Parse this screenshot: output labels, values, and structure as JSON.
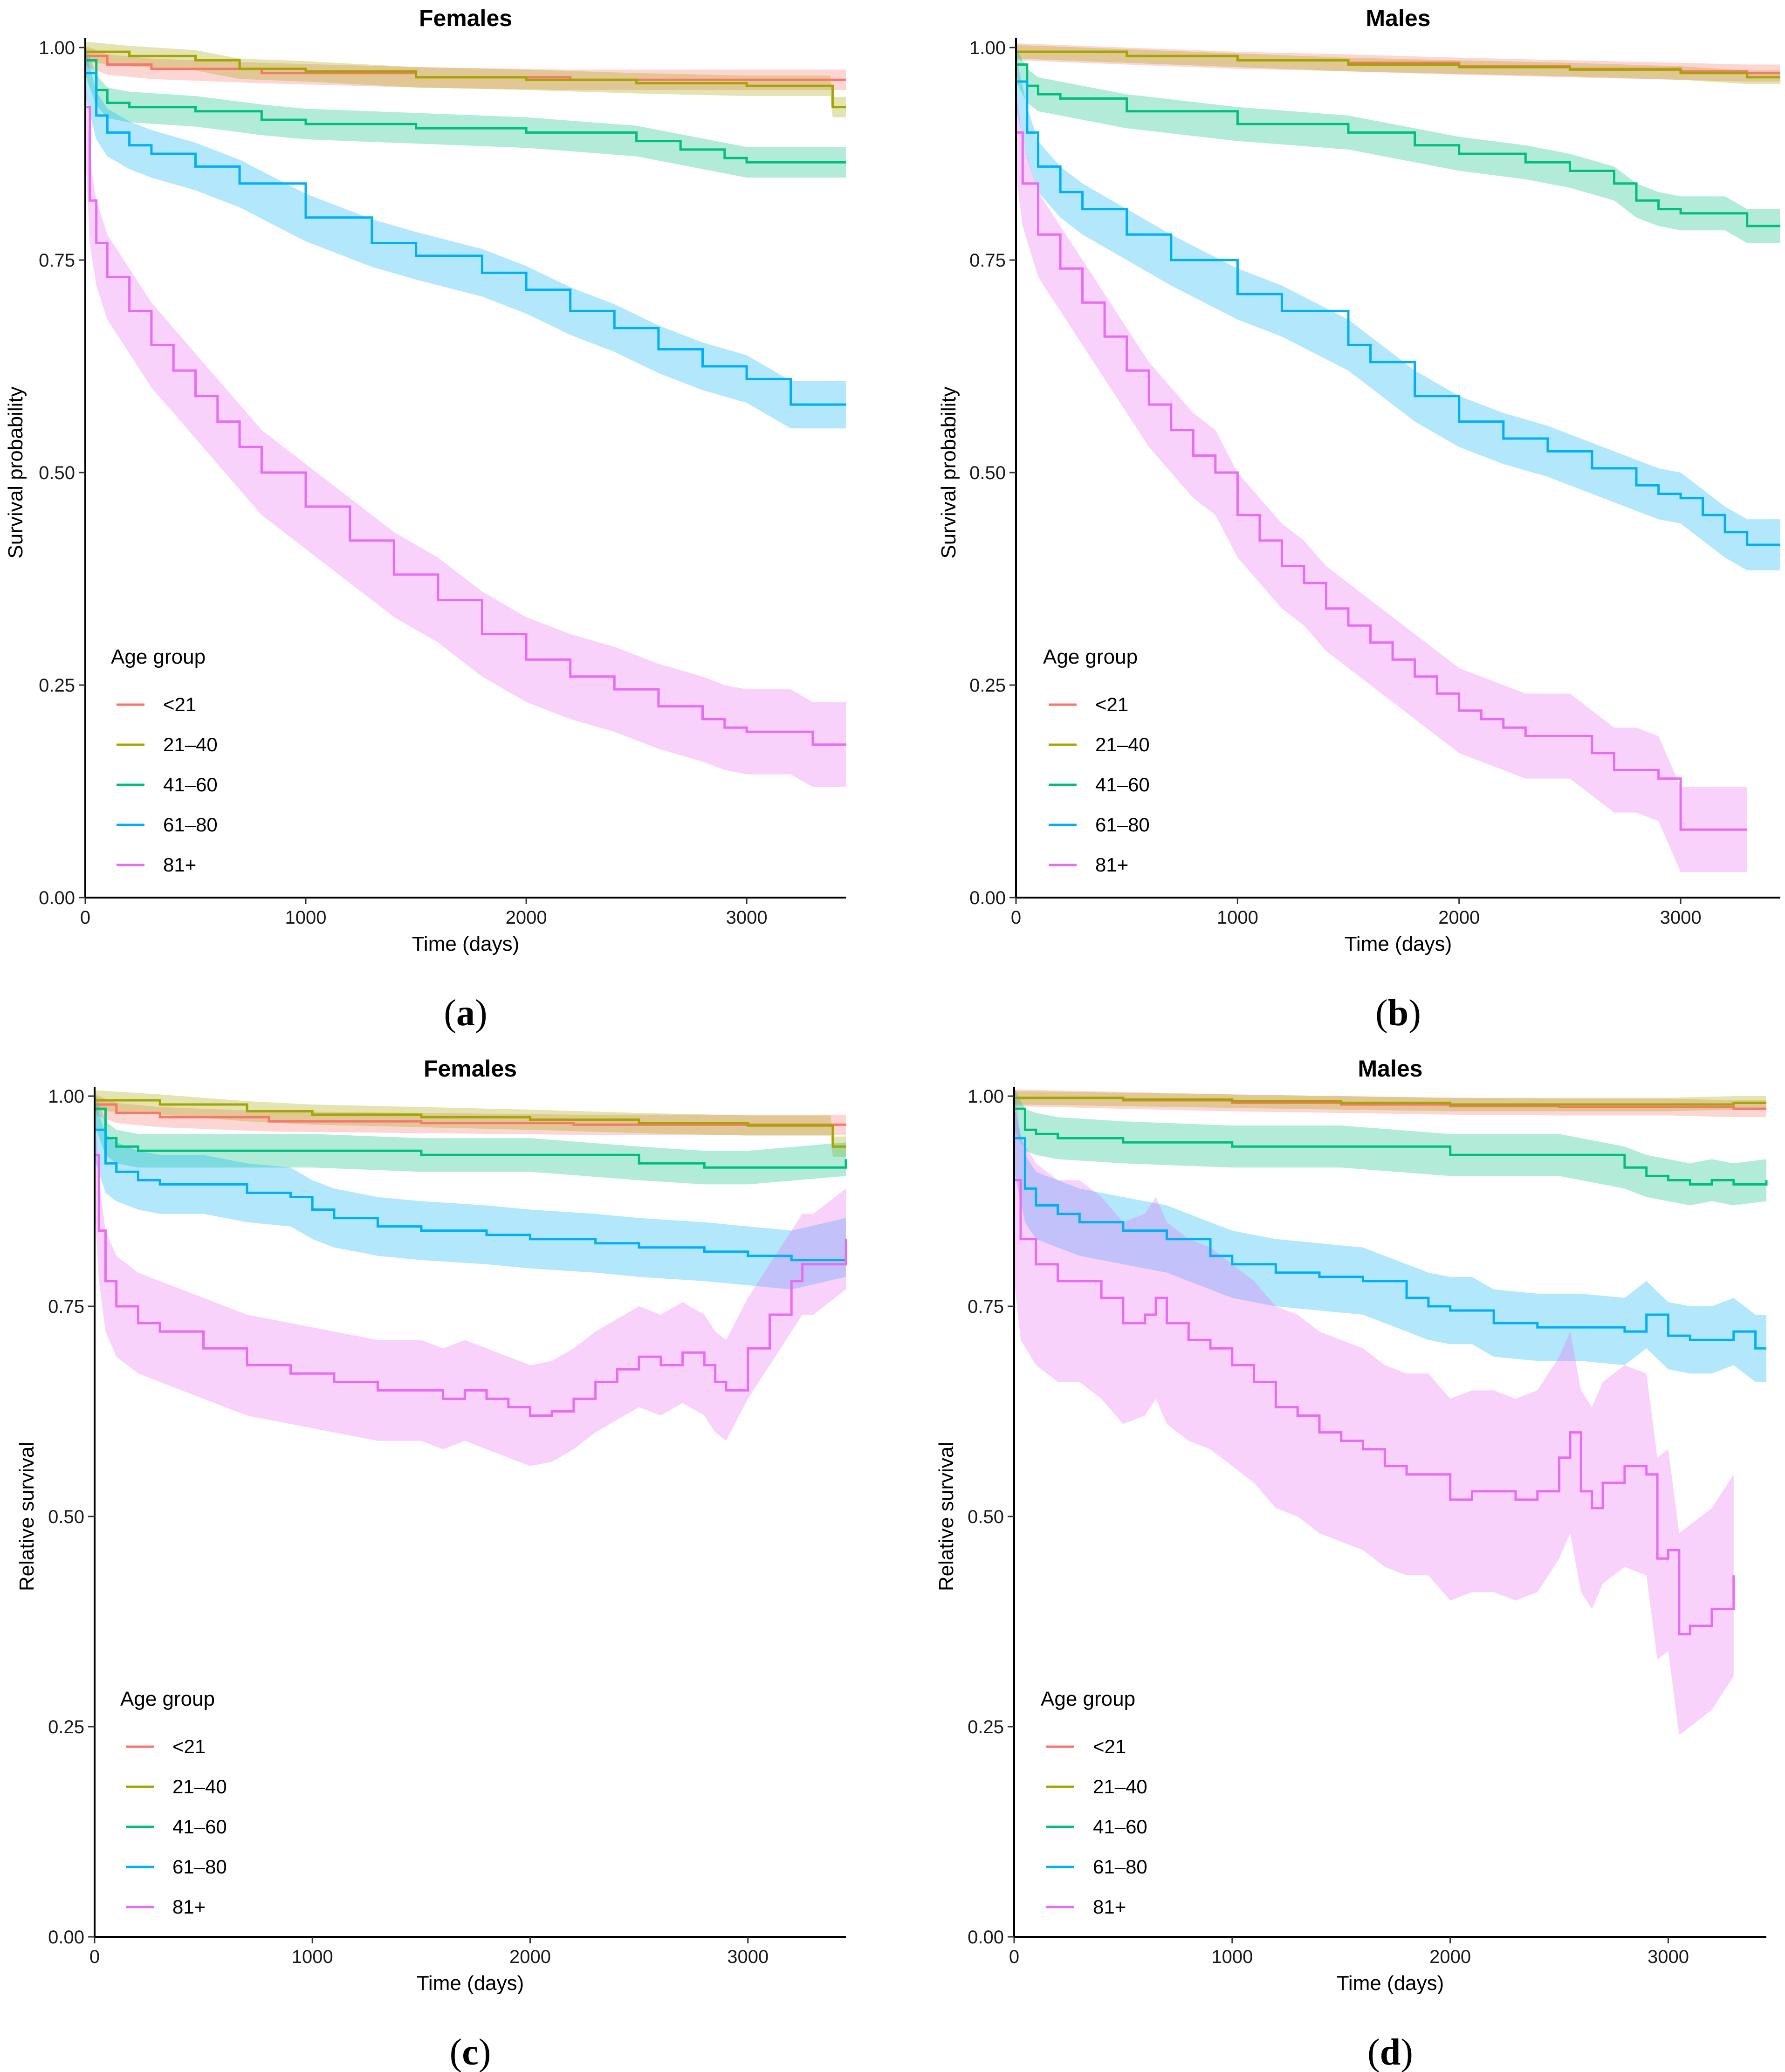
{
  "chart_data": [
    {
      "id": "a",
      "panel_label": "a",
      "type": "line",
      "title": "Females",
      "xlabel": "Time (days)",
      "ylabel": "Survival probability",
      "xlim": [
        0,
        3450
      ],
      "ylim": [
        0,
        1
      ],
      "xticks": [
        0,
        1000,
        2000,
        3000
      ],
      "xtick_labels": [
        "0",
        "1000",
        "2000",
        "3000"
      ],
      "yticks": [
        0,
        0.25,
        0.5,
        0.75,
        1
      ],
      "ytick_labels": [
        "0.00",
        "0.25",
        "0.50",
        "0.75",
        "1.00"
      ],
      "legend_title": "Age group",
      "legend_position": "bottom-left",
      "series": [
        {
          "name": "<21",
          "color": "#F8766D",
          "band": 0.012,
          "x": [
            0,
            100,
            300,
            800,
            1500,
            2200,
            3000,
            3450
          ],
          "y": [
            0.99,
            0.98,
            0.975,
            0.97,
            0.965,
            0.962,
            0.962,
            0.962
          ]
        },
        {
          "name": "21–40",
          "color": "#A3A500",
          "band": 0.012,
          "x": [
            0,
            200,
            500,
            700,
            1000,
            1500,
            2000,
            2500,
            3000,
            3380,
            3390,
            3450
          ],
          "y": [
            0.995,
            0.99,
            0.985,
            0.975,
            0.972,
            0.965,
            0.962,
            0.958,
            0.955,
            0.955,
            0.93,
            0.93
          ]
        },
        {
          "name": "41–60",
          "color": "#00BF7D",
          "band": 0.018,
          "x": [
            0,
            50,
            100,
            200,
            500,
            800,
            1000,
            1500,
            2000,
            2500,
            2700,
            2900,
            3000,
            3450
          ],
          "y": [
            0.985,
            0.95,
            0.935,
            0.93,
            0.925,
            0.915,
            0.91,
            0.905,
            0.9,
            0.89,
            0.88,
            0.87,
            0.865,
            0.865
          ]
        },
        {
          "name": "61–80",
          "color": "#00B0F6",
          "band": 0.028,
          "x": [
            0,
            50,
            100,
            200,
            300,
            500,
            700,
            1000,
            1300,
            1500,
            1800,
            2000,
            2200,
            2400,
            2600,
            2800,
            3000,
            3200,
            3450
          ],
          "y": [
            0.97,
            0.92,
            0.9,
            0.885,
            0.875,
            0.86,
            0.84,
            0.8,
            0.77,
            0.755,
            0.735,
            0.715,
            0.69,
            0.67,
            0.645,
            0.625,
            0.61,
            0.58,
            0.58
          ]
        },
        {
          "name": "81+",
          "color": "#E76BF3",
          "band": 0.05,
          "x": [
            0,
            20,
            50,
            100,
            200,
            300,
            400,
            500,
            600,
            700,
            800,
            1000,
            1200,
            1400,
            1600,
            1800,
            2000,
            2200,
            2400,
            2600,
            2800,
            2900,
            3000,
            3200,
            3300,
            3450
          ],
          "y": [
            0.93,
            0.82,
            0.77,
            0.73,
            0.69,
            0.65,
            0.62,
            0.59,
            0.56,
            0.53,
            0.5,
            0.46,
            0.42,
            0.38,
            0.35,
            0.31,
            0.28,
            0.26,
            0.245,
            0.225,
            0.21,
            0.2,
            0.195,
            0.195,
            0.18,
            0.18
          ]
        }
      ]
    },
    {
      "id": "b",
      "panel_label": "b",
      "type": "line",
      "title": "Males",
      "xlabel": "Time (days)",
      "ylabel": "Survival probability",
      "xlim": [
        0,
        3450
      ],
      "ylim": [
        0,
        1
      ],
      "xticks": [
        0,
        1000,
        2000,
        3000
      ],
      "xtick_labels": [
        "0",
        "1000",
        "2000",
        "3000"
      ],
      "yticks": [
        0,
        0.25,
        0.5,
        0.75,
        1
      ],
      "ytick_labels": [
        "0.00",
        "0.25",
        "0.50",
        "0.75",
        "1.00"
      ],
      "legend_title": "Age group",
      "legend_position": "bottom-left",
      "series": [
        {
          "name": "<21",
          "color": "#F8766D",
          "band": 0.01,
          "x": [
            0,
            500,
            1000,
            1500,
            2000,
            2500,
            3000,
            3300,
            3450
          ],
          "y": [
            0.995,
            0.99,
            0.985,
            0.982,
            0.978,
            0.975,
            0.972,
            0.97,
            0.97
          ]
        },
        {
          "name": "21–40",
          "color": "#A3A500",
          "band": 0.008,
          "x": [
            0,
            500,
            1000,
            1500,
            2000,
            2500,
            3000,
            3300,
            3450
          ],
          "y": [
            0.995,
            0.99,
            0.985,
            0.98,
            0.977,
            0.974,
            0.97,
            0.965,
            0.965
          ]
        },
        {
          "name": "41–60",
          "color": "#00BF7D",
          "band": 0.02,
          "x": [
            0,
            50,
            100,
            200,
            500,
            1000,
            1500,
            1800,
            2000,
            2300,
            2500,
            2700,
            2800,
            2900,
            3000,
            3200,
            3300,
            3450
          ],
          "y": [
            0.98,
            0.955,
            0.945,
            0.94,
            0.925,
            0.91,
            0.9,
            0.885,
            0.875,
            0.865,
            0.855,
            0.84,
            0.82,
            0.81,
            0.805,
            0.805,
            0.79,
            0.79
          ]
        },
        {
          "name": "61–80",
          "color": "#00B0F6",
          "band": 0.03,
          "x": [
            0,
            50,
            100,
            200,
            300,
            500,
            700,
            1000,
            1200,
            1500,
            1600,
            1800,
            2000,
            2200,
            2400,
            2600,
            2800,
            2900,
            3000,
            3100,
            3200,
            3300,
            3450
          ],
          "y": [
            0.96,
            0.9,
            0.86,
            0.83,
            0.81,
            0.78,
            0.75,
            0.71,
            0.69,
            0.65,
            0.63,
            0.59,
            0.56,
            0.54,
            0.525,
            0.505,
            0.485,
            0.475,
            0.47,
            0.45,
            0.43,
            0.415,
            0.415
          ]
        },
        {
          "name": "81+",
          "color": "#E76BF3",
          "band": 0.05,
          "x": [
            0,
            30,
            100,
            200,
            300,
            400,
            500,
            600,
            700,
            800,
            900,
            1000,
            1100,
            1200,
            1300,
            1400,
            1500,
            1600,
            1700,
            1800,
            1900,
            2000,
            2100,
            2200,
            2300,
            2500,
            2600,
            2700,
            2800,
            2900,
            3000,
            3200,
            3300
          ],
          "y": [
            0.9,
            0.84,
            0.78,
            0.74,
            0.7,
            0.66,
            0.62,
            0.58,
            0.55,
            0.52,
            0.5,
            0.45,
            0.42,
            0.39,
            0.37,
            0.34,
            0.32,
            0.3,
            0.28,
            0.26,
            0.24,
            0.22,
            0.21,
            0.2,
            0.19,
            0.19,
            0.17,
            0.15,
            0.15,
            0.14,
            0.08,
            0.08,
            0.08
          ]
        }
      ]
    },
    {
      "id": "c",
      "panel_label": "c",
      "type": "line",
      "title": "Females",
      "xlabel": "Time (days)",
      "ylabel": "Relative survival",
      "xlim": [
        0,
        3450
      ],
      "ylim": [
        0,
        1
      ],
      "xticks": [
        0,
        1000,
        2000,
        3000
      ],
      "xtick_labels": [
        "0",
        "1000",
        "2000",
        "3000"
      ],
      "yticks": [
        0,
        0.25,
        0.5,
        0.75,
        1
      ],
      "ytick_labels": [
        "0.00",
        "0.25",
        "0.50",
        "0.75",
        "1.00"
      ],
      "legend_title": "Age group",
      "legend_position": "bottom-left",
      "series": [
        {
          "name": "<21",
          "color": "#F8766D",
          "band": 0.012,
          "x": [
            0,
            100,
            300,
            800,
            1500,
            2200,
            3000,
            3450
          ],
          "y": [
            0.99,
            0.98,
            0.975,
            0.97,
            0.968,
            0.966,
            0.966,
            0.966
          ]
        },
        {
          "name": "21–40",
          "color": "#A3A500",
          "band": 0.012,
          "x": [
            0,
            300,
            700,
            1000,
            1500,
            2000,
            2500,
            3000,
            3380,
            3390,
            3450
          ],
          "y": [
            0.995,
            0.99,
            0.982,
            0.978,
            0.975,
            0.972,
            0.968,
            0.965,
            0.965,
            0.94,
            0.94
          ]
        },
        {
          "name": "41–60",
          "color": "#00BF7D",
          "band": 0.02,
          "x": [
            0,
            50,
            100,
            200,
            500,
            1000,
            1500,
            2000,
            2500,
            2800,
            3000,
            3450
          ],
          "y": [
            0.985,
            0.95,
            0.94,
            0.935,
            0.935,
            0.935,
            0.93,
            0.93,
            0.92,
            0.915,
            0.915,
            0.925
          ]
        },
        {
          "name": "61–80",
          "color": "#00B0F6",
          "band": 0.035,
          "x": [
            0,
            50,
            100,
            200,
            300,
            500,
            700,
            900,
            1000,
            1100,
            1300,
            1500,
            1800,
            2000,
            2300,
            2500,
            2800,
            3000,
            3200,
            3450
          ],
          "y": [
            0.96,
            0.92,
            0.91,
            0.9,
            0.895,
            0.895,
            0.885,
            0.88,
            0.865,
            0.855,
            0.845,
            0.84,
            0.835,
            0.83,
            0.825,
            0.82,
            0.815,
            0.81,
            0.805,
            0.82
          ]
        },
        {
          "name": "81+",
          "color": "#E76BF3",
          "band": 0.06,
          "x": [
            0,
            20,
            50,
            100,
            200,
            300,
            500,
            700,
            900,
            1100,
            1300,
            1500,
            1600,
            1700,
            1800,
            1900,
            2000,
            2100,
            2200,
            2300,
            2400,
            2500,
            2600,
            2700,
            2800,
            2850,
            2900,
            3000,
            3100,
            3200,
            3250,
            3300,
            3450
          ],
          "y": [
            0.93,
            0.84,
            0.78,
            0.75,
            0.73,
            0.72,
            0.7,
            0.68,
            0.67,
            0.66,
            0.65,
            0.65,
            0.64,
            0.65,
            0.64,
            0.63,
            0.62,
            0.625,
            0.64,
            0.66,
            0.675,
            0.69,
            0.68,
            0.695,
            0.68,
            0.66,
            0.65,
            0.7,
            0.74,
            0.78,
            0.8,
            0.8,
            0.83
          ]
        }
      ]
    },
    {
      "id": "d",
      "panel_label": "d",
      "type": "line",
      "title": "Males",
      "xlabel": "Time (days)",
      "ylabel": "Relative survival",
      "xlim": [
        0,
        3450
      ],
      "ylim": [
        0,
        1
      ],
      "xticks": [
        0,
        1000,
        2000,
        3000
      ],
      "xtick_labels": [
        "0",
        "1000",
        "2000",
        "3000"
      ],
      "yticks": [
        0,
        0.25,
        0.5,
        0.75,
        1
      ],
      "ytick_labels": [
        "0.00",
        "0.25",
        "0.50",
        "0.75",
        "1.00"
      ],
      "legend_title": "Age group",
      "legend_position": "bottom-left",
      "series": [
        {
          "name": "<21",
          "color": "#F8766D",
          "band": 0.01,
          "x": [
            0,
            500,
            1000,
            1500,
            2000,
            2500,
            3000,
            3300,
            3450
          ],
          "y": [
            0.998,
            0.995,
            0.992,
            0.99,
            0.988,
            0.987,
            0.987,
            0.985,
            0.985
          ]
        },
        {
          "name": "21–40",
          "color": "#A3A500",
          "band": 0.008,
          "x": [
            0,
            500,
            1000,
            1500,
            2000,
            2500,
            3000,
            3300,
            3450
          ],
          "y": [
            0.998,
            0.996,
            0.994,
            0.992,
            0.99,
            0.99,
            0.99,
            0.992,
            0.992
          ]
        },
        {
          "name": "41–60",
          "color": "#00BF7D",
          "band": 0.025,
          "x": [
            0,
            50,
            100,
            200,
            500,
            1000,
            1500,
            2000,
            2500,
            2800,
            2900,
            3000,
            3100,
            3200,
            3300,
            3450
          ],
          "y": [
            0.985,
            0.96,
            0.955,
            0.95,
            0.945,
            0.94,
            0.94,
            0.93,
            0.93,
            0.915,
            0.905,
            0.9,
            0.895,
            0.9,
            0.895,
            0.9
          ]
        },
        {
          "name": "61–80",
          "color": "#00B0F6",
          "band": 0.04,
          "x": [
            0,
            50,
            100,
            200,
            300,
            500,
            700,
            900,
            1000,
            1200,
            1400,
            1600,
            1800,
            1900,
            2000,
            2100,
            2200,
            2400,
            2600,
            2800,
            2900,
            3000,
            3100,
            3200,
            3300,
            3400,
            3450
          ],
          "y": [
            0.95,
            0.89,
            0.87,
            0.86,
            0.85,
            0.84,
            0.83,
            0.81,
            0.8,
            0.79,
            0.785,
            0.78,
            0.76,
            0.75,
            0.745,
            0.745,
            0.73,
            0.725,
            0.725,
            0.72,
            0.74,
            0.715,
            0.71,
            0.71,
            0.72,
            0.7,
            0.7
          ]
        },
        {
          "name": "81+",
          "color": "#E76BF3",
          "band": 0.12,
          "x": [
            0,
            30,
            100,
            200,
            300,
            400,
            500,
            600,
            650,
            700,
            800,
            900,
            1000,
            1100,
            1200,
            1300,
            1400,
            1500,
            1600,
            1700,
            1800,
            1900,
            2000,
            2100,
            2200,
            2300,
            2400,
            2500,
            2550,
            2600,
            2650,
            2700,
            2800,
            2900,
            2950,
            3000,
            3050,
            3100,
            3200,
            3300
          ],
          "y": [
            0.9,
            0.83,
            0.8,
            0.78,
            0.78,
            0.76,
            0.73,
            0.74,
            0.76,
            0.73,
            0.71,
            0.7,
            0.68,
            0.66,
            0.63,
            0.62,
            0.6,
            0.59,
            0.58,
            0.56,
            0.55,
            0.55,
            0.52,
            0.53,
            0.53,
            0.52,
            0.53,
            0.57,
            0.6,
            0.53,
            0.51,
            0.54,
            0.56,
            0.55,
            0.45,
            0.46,
            0.36,
            0.37,
            0.39,
            0.43
          ]
        }
      ]
    }
  ]
}
